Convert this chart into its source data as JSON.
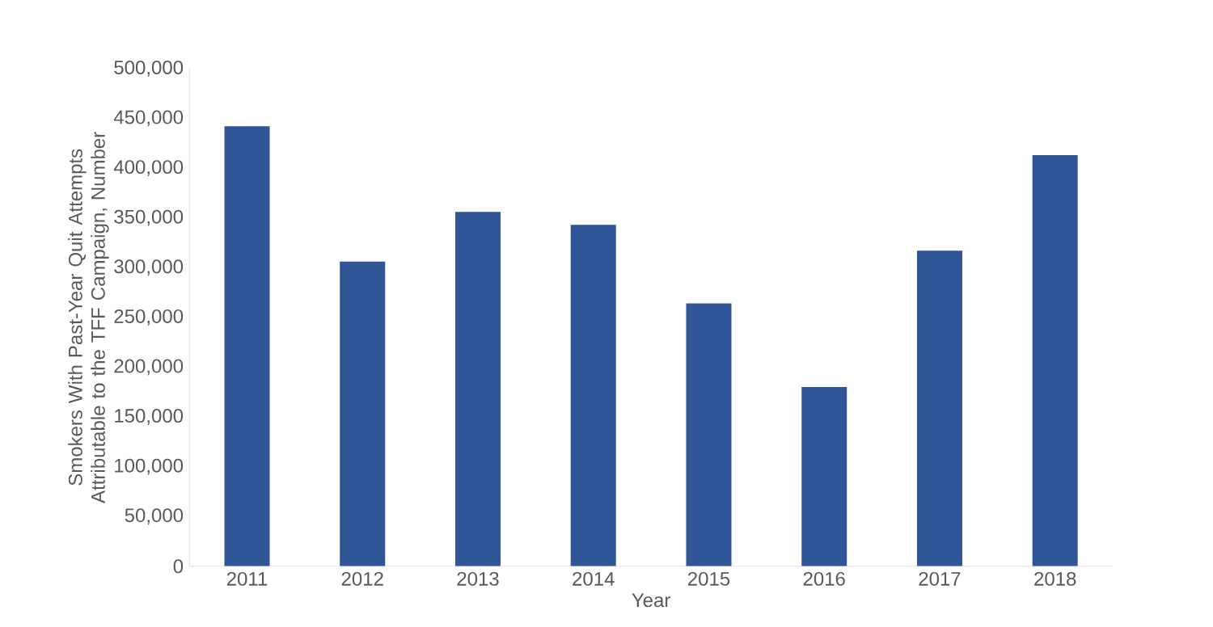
{
  "chart_data": {
    "type": "bar",
    "xlabel": "Year",
    "ylabel": "Smokers With Past-Year Quit Attempts Attributable to the TFF Campaign, Number",
    "categories": [
      "2011",
      "2012",
      "2013",
      "2014",
      "2015",
      "2016",
      "2017",
      "2018"
    ],
    "values": [
      442000,
      306000,
      356000,
      343000,
      264000,
      180000,
      317000,
      413000
    ],
    "color": "#2f5597",
    "ylim": [
      0,
      500000
    ],
    "yticks": [
      {
        "value": 0,
        "label": "0"
      },
      {
        "value": 50000,
        "label": "50,000"
      },
      {
        "value": 100000,
        "label": "100,000"
      },
      {
        "value": 150000,
        "label": "150,000"
      },
      {
        "value": 200000,
        "label": "200,000"
      },
      {
        "value": 250000,
        "label": "250,000"
      },
      {
        "value": 300000,
        "label": "300,000"
      },
      {
        "value": 350000,
        "label": "350,000"
      },
      {
        "value": 400000,
        "label": "400,000"
      },
      {
        "value": 450000,
        "label": "450,000"
      },
      {
        "value": 500000,
        "label": "500,000"
      }
    ],
    "grid": false
  }
}
